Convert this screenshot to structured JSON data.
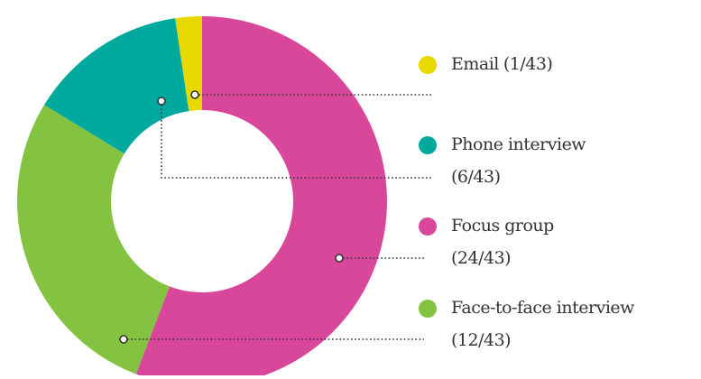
{
  "chart_data": {
    "type": "pie",
    "categories": [
      "Email",
      "Phone interview",
      "Focus group",
      "Face-to-face interview"
    ],
    "values": [
      1,
      6,
      24,
      12
    ],
    "value_labels": [
      "(1/43)",
      "(6/43)",
      "(24/43)",
      "(12/43)"
    ],
    "colors": [
      "#e8d800",
      "#00a99d",
      "#d9479b",
      "#84c341"
    ],
    "donut": true
  }
}
